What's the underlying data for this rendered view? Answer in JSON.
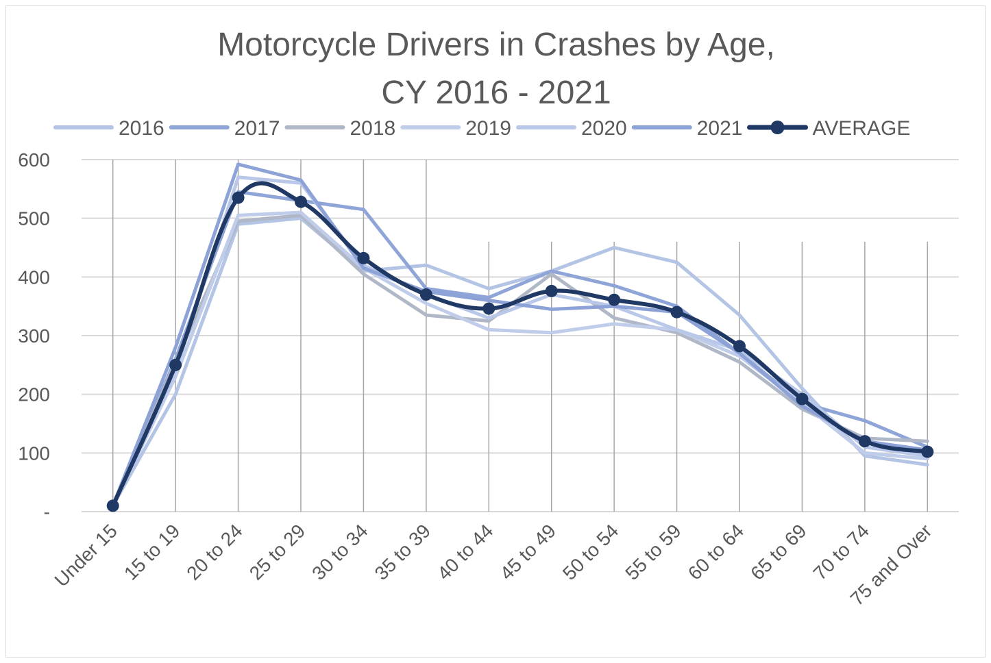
{
  "chart_data": {
    "type": "line",
    "title_lines": [
      "Motorcycle Drivers in Crashes by Age,",
      "CY 2016 - 2021"
    ],
    "categories": [
      "Under 15",
      "15 to 19",
      "20 to 24",
      "25 to 29",
      "30 to 34",
      "35 to 39",
      "40 to 44",
      "45 to 49",
      "50 to 54",
      "55 to 59",
      "60 to 64",
      "65 to 69",
      "70 to 74",
      "75 and Over"
    ],
    "ylim": [
      0,
      600
    ],
    "yticks": [
      0,
      100,
      200,
      300,
      400,
      500,
      600
    ],
    "ytick_labels": [
      "-",
      "100",
      "200",
      "300",
      "400",
      "500",
      "600"
    ],
    "grid": true,
    "legend_position": "top",
    "series": [
      {
        "name": "2016",
        "color": "#b4c4e4",
        "values": [
          10,
          200,
          490,
          500,
          410,
          420,
          380,
          410,
          450,
          425,
          335,
          210,
          95,
          80
        ]
      },
      {
        "name": "2017",
        "color": "#8fa5d8",
        "values": [
          10,
          260,
          545,
          530,
          515,
          380,
          365,
          410,
          385,
          350,
          270,
          185,
          155,
          110
        ]
      },
      {
        "name": "2018",
        "color": "#b0b8c8",
        "values": [
          10,
          255,
          495,
          505,
          405,
          335,
          325,
          405,
          330,
          305,
          255,
          175,
          125,
          120
        ]
      },
      {
        "name": "2019",
        "color": "#c0cdea",
        "values": [
          10,
          230,
          505,
          510,
          415,
          355,
          310,
          305,
          320,
          310,
          265,
          185,
          100,
          90
        ]
      },
      {
        "name": "2020",
        "color": "#b9c8e8",
        "values": [
          10,
          240,
          570,
          560,
          420,
          370,
          330,
          370,
          350,
          310,
          275,
          200,
          110,
          95
        ]
      },
      {
        "name": "2021",
        "color": "#8da2d6",
        "values": [
          10,
          280,
          592,
          565,
          415,
          375,
          360,
          345,
          350,
          340,
          270,
          180,
          120,
          105
        ]
      },
      {
        "name": "AVERAGE",
        "color": "#1f3864",
        "values": [
          10,
          250,
          535,
          528,
          432,
          370,
          346,
          376,
          361,
          340,
          282,
          192,
          120,
          102
        ],
        "markers": true,
        "smooth": true
      }
    ]
  }
}
